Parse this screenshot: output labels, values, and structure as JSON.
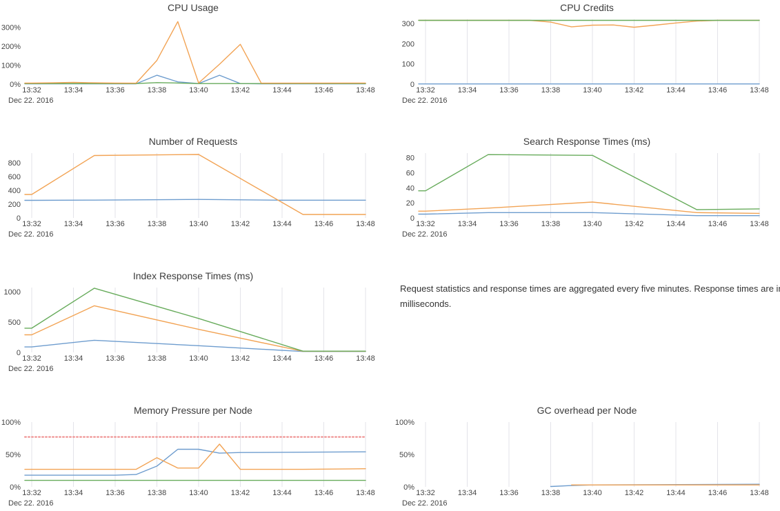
{
  "page": {
    "background": "#ffffff"
  },
  "note": {
    "text": "Request statistics and response times are aggregated every five minutes. Response times are in milliseconds."
  },
  "palette": {
    "blue": "#6d9cce",
    "orange": "#f2a354",
    "green": "#67ab5b",
    "red_dotted": "#ee8a8a",
    "grid": "#e3e3e9",
    "title_text": "#3b3b3b",
    "tick_text": "#444444"
  },
  "x_axis_note": "x points are minutes after 13:32 (0..16), ticks every 2 minutes",
  "chart_data": [
    {
      "type": "line",
      "title": "CPU Usage",
      "grid": false,
      "date_label": "Dec 22. 2016",
      "x_ticks": [
        "13:32",
        "13:34",
        "13:36",
        "13:38",
        "13:40",
        "13:42",
        "13:44",
        "13:46",
        "13:48"
      ],
      "y_ticks": [
        {
          "v": 0,
          "label": "0%"
        },
        {
          "v": 100,
          "label": "100%"
        },
        {
          "v": 200,
          "label": "200%"
        },
        {
          "v": 300,
          "label": "300%"
        }
      ],
      "y_top_value": 342,
      "series": [
        {
          "name": "blue",
          "color": "blue",
          "style": "solid",
          "points": [
            [
              0,
              2
            ],
            [
              5,
              2
            ],
            [
              6,
              47
            ],
            [
              7,
              12
            ],
            [
              8,
              3
            ],
            [
              9,
              47
            ],
            [
              10,
              3
            ],
            [
              11,
              2
            ],
            [
              16,
              2
            ]
          ]
        },
        {
          "name": "green",
          "color": "green",
          "style": "solid",
          "points": [
            [
              0,
              3
            ],
            [
              5,
              3
            ],
            [
              6,
              8
            ],
            [
              7,
              6
            ],
            [
              8,
              3
            ],
            [
              16,
              3
            ]
          ]
        },
        {
          "name": "orange",
          "color": "orange",
          "style": "solid",
          "points": [
            [
              0,
              6
            ],
            [
              1,
              7
            ],
            [
              2,
              9
            ],
            [
              3,
              7
            ],
            [
              4,
              6
            ],
            [
              5,
              5
            ],
            [
              6,
              125
            ],
            [
              7,
              330
            ],
            [
              8,
              6
            ],
            [
              9,
              105
            ],
            [
              10,
              210
            ],
            [
              11,
              5
            ],
            [
              16,
              6
            ]
          ]
        }
      ]
    },
    {
      "type": "line",
      "title": "CPU Credits",
      "grid": true,
      "date_label": "Dec 22. 2016",
      "x_ticks": [
        "13:32",
        "13:34",
        "13:36",
        "13:38",
        "13:40",
        "13:42",
        "13:44",
        "13:46",
        "13:48"
      ],
      "y_ticks": [
        {
          "v": 0,
          "label": "0"
        },
        {
          "v": 100,
          "label": "100"
        },
        {
          "v": 200,
          "label": "200"
        },
        {
          "v": 300,
          "label": "300"
        }
      ],
      "y_top_value": 320,
      "series": [
        {
          "name": "blue",
          "color": "blue",
          "style": "solid",
          "points": [
            [
              0,
              1
            ],
            [
              16,
              1
            ]
          ]
        },
        {
          "name": "orange",
          "color": "orange",
          "style": "solid",
          "points": [
            [
              0,
              315
            ],
            [
              5,
              315
            ],
            [
              6,
              306
            ],
            [
              7,
              283
            ],
            [
              8,
              291
            ],
            [
              9,
              292
            ],
            [
              10,
              281
            ],
            [
              11,
              291
            ],
            [
              12,
              302
            ],
            [
              13,
              311
            ],
            [
              14,
              315
            ],
            [
              16,
              315
            ]
          ]
        },
        {
          "name": "green",
          "color": "green",
          "style": "solid",
          "points": [
            [
              0,
              315
            ],
            [
              16,
              315
            ]
          ]
        }
      ]
    },
    {
      "type": "line",
      "title": "Number of Requests",
      "grid": true,
      "date_label": "Dec 22. 2016",
      "x_ticks": [
        "13:32",
        "13:34",
        "13:36",
        "13:38",
        "13:40",
        "13:42",
        "13:44",
        "13:46",
        "13:48"
      ],
      "y_ticks": [
        {
          "v": 0,
          "label": "0"
        },
        {
          "v": 200,
          "label": "200"
        },
        {
          "v": 400,
          "label": "400"
        },
        {
          "v": 600,
          "label": "600"
        },
        {
          "v": 800,
          "label": "800"
        }
      ],
      "y_top_value": 940,
      "series": [
        {
          "name": "blue",
          "color": "blue",
          "style": "solid",
          "points": [
            [
              0,
              255
            ],
            [
              3,
              258
            ],
            [
              8,
              268
            ],
            [
              12,
              257
            ],
            [
              16,
              257
            ]
          ]
        },
        {
          "name": "orange",
          "color": "orange",
          "style": "solid",
          "points": [
            [
              0,
              340
            ],
            [
              3,
              905
            ],
            [
              8,
              920
            ],
            [
              13,
              50
            ],
            [
              16,
              50
            ]
          ]
        }
      ]
    },
    {
      "type": "line",
      "title": "Search Response Times (ms)",
      "grid": true,
      "date_label": "Dec 22. 2016",
      "x_ticks": [
        "13:32",
        "13:34",
        "13:36",
        "13:38",
        "13:40",
        "13:42",
        "13:44",
        "13:46",
        "13:48"
      ],
      "y_ticks": [
        {
          "v": 0,
          "label": "0"
        },
        {
          "v": 20,
          "label": "20"
        },
        {
          "v": 40,
          "label": "40"
        },
        {
          "v": 60,
          "label": "60"
        },
        {
          "v": 80,
          "label": "80"
        }
      ],
      "y_top_value": 86,
      "series": [
        {
          "name": "blue",
          "color": "blue",
          "style": "solid",
          "points": [
            [
              0,
              5
            ],
            [
              3,
              7
            ],
            [
              8,
              7
            ],
            [
              13,
              3
            ],
            [
              16,
              3
            ]
          ]
        },
        {
          "name": "orange",
          "color": "orange",
          "style": "solid",
          "points": [
            [
              0,
              9
            ],
            [
              3,
              13
            ],
            [
              8,
              21
            ],
            [
              13,
              7
            ],
            [
              16,
              6
            ]
          ]
        },
        {
          "name": "green",
          "color": "green",
          "style": "solid",
          "points": [
            [
              0,
              36
            ],
            [
              3,
              84
            ],
            [
              8,
              83
            ],
            [
              13,
              11
            ],
            [
              16,
              12
            ]
          ]
        }
      ]
    },
    {
      "type": "line",
      "title": "Index Response Times (ms)",
      "grid": true,
      "date_label": "Dec 22. 2016",
      "x_ticks": [
        "13:32",
        "13:34",
        "13:36",
        "13:38",
        "13:40",
        "13:42",
        "13:44",
        "13:46",
        "13:48"
      ],
      "y_ticks": [
        {
          "v": 0,
          "label": "0"
        },
        {
          "v": 500,
          "label": "500"
        },
        {
          "v": 1000,
          "label": "1000"
        }
      ],
      "y_top_value": 1070,
      "series": [
        {
          "name": "blue",
          "color": "blue",
          "style": "solid",
          "points": [
            [
              0,
              90
            ],
            [
              3,
              200
            ],
            [
              8,
              110
            ],
            [
              13,
              15
            ],
            [
              16,
              15
            ]
          ]
        },
        {
          "name": "orange",
          "color": "orange",
          "style": "solid",
          "points": [
            [
              0,
              290
            ],
            [
              3,
              770
            ],
            [
              8,
              380
            ],
            [
              13,
              18
            ],
            [
              16,
              18
            ]
          ]
        },
        {
          "name": "green",
          "color": "green",
          "style": "solid",
          "points": [
            [
              0,
              400
            ],
            [
              3,
              1060
            ],
            [
              8,
              560
            ],
            [
              13,
              20
            ],
            [
              16,
              20
            ]
          ]
        }
      ]
    },
    {
      "type": "line",
      "title": "Memory Pressure per Node",
      "grid": true,
      "date_label": "Dec 22. 2016",
      "x_ticks": [
        "13:32",
        "13:34",
        "13:36",
        "13:38",
        "13:40",
        "13:42",
        "13:44",
        "13:46",
        "13:48"
      ],
      "y_ticks": [
        {
          "v": 0,
          "label": "0%"
        },
        {
          "v": 50,
          "label": "50%"
        },
        {
          "v": 100,
          "label": "100%"
        }
      ],
      "y_top_value": 100,
      "series": [
        {
          "name": "green",
          "color": "green",
          "style": "solid",
          "points": [
            [
              0,
              10
            ],
            [
              16,
              10
            ]
          ]
        },
        {
          "name": "blue",
          "color": "blue",
          "style": "solid",
          "points": [
            [
              0,
              18
            ],
            [
              4,
              18
            ],
            [
              5,
              19
            ],
            [
              6,
              32
            ],
            [
              7,
              58
            ],
            [
              8,
              58
            ],
            [
              9,
              52
            ],
            [
              10,
              53
            ],
            [
              16,
              54
            ]
          ]
        },
        {
          "name": "orange",
          "color": "orange",
          "style": "solid",
          "points": [
            [
              0,
              27
            ],
            [
              5,
              27
            ],
            [
              6,
              45
            ],
            [
              7,
              29
            ],
            [
              8,
              29
            ],
            [
              9,
              66
            ],
            [
              10,
              27
            ],
            [
              13,
              27
            ],
            [
              16,
              28
            ]
          ]
        },
        {
          "name": "threshold",
          "color": "red_dotted",
          "style": "dotted",
          "points": [
            [
              0,
              77
            ],
            [
              16,
              77
            ]
          ]
        }
      ]
    },
    {
      "type": "line",
      "title": "GC overhead per Node",
      "grid": true,
      "date_label": "Dec 22. 2016",
      "x_ticks": [
        "13:32",
        "13:34",
        "13:36",
        "13:38",
        "13:40",
        "13:42",
        "13:44",
        "13:46",
        "13:48"
      ],
      "y_ticks": [
        {
          "v": 0,
          "label": "0%"
        },
        {
          "v": 50,
          "label": "50%"
        },
        {
          "v": 100,
          "label": "100%"
        }
      ],
      "y_top_value": 100,
      "series": [
        {
          "name": "blue",
          "color": "blue",
          "style": "solid",
          "points": [
            [
              6,
              0.5
            ],
            [
              7,
              2
            ],
            [
              8,
              3
            ],
            [
              16,
              4
            ]
          ]
        },
        {
          "name": "orange",
          "color": "orange",
          "style": "solid",
          "points": [
            [
              7,
              3
            ],
            [
              16,
              3
            ]
          ]
        }
      ]
    }
  ]
}
